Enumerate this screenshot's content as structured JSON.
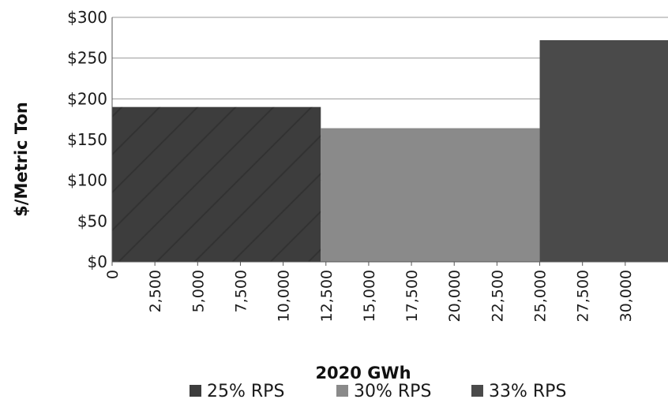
{
  "chart_data": {
    "type": "bar",
    "variant": "variable-width step (supply curve)",
    "xlabel": "2020 GWh",
    "ylabel": "$/Metric Ton",
    "xlim": [
      0,
      32500
    ],
    "ylim": [
      0,
      300
    ],
    "x_ticks": [
      0,
      2500,
      5000,
      7500,
      10000,
      12500,
      15000,
      17500,
      20000,
      22500,
      25000,
      27500,
      30000
    ],
    "x_tick_labels": [
      "0",
      "2,500",
      "5,000",
      "7,500",
      "10,000",
      "12,500",
      "15,000",
      "17,500",
      "20,000",
      "22,500",
      "25,000",
      "27,500",
      "30,000"
    ],
    "y_ticks": [
      0,
      50,
      100,
      150,
      200,
      250,
      300
    ],
    "y_tick_labels": [
      "$0",
      "$50",
      "$100",
      "$150",
      "$200",
      "$250",
      "$300"
    ],
    "grid": true,
    "legend_position": "bottom",
    "series": [
      {
        "name": "25% RPS",
        "x_start": 0,
        "x_end": 12200,
        "value": 190,
        "color": "#3d3d3d"
      },
      {
        "name": "30% RPS",
        "x_start": 12200,
        "x_end": 25000,
        "value": 164,
        "color": "#8a8a8a"
      },
      {
        "name": "33% RPS",
        "x_start": 25000,
        "x_end": 32500,
        "value": 272,
        "color": "#4a4a4a"
      }
    ]
  }
}
